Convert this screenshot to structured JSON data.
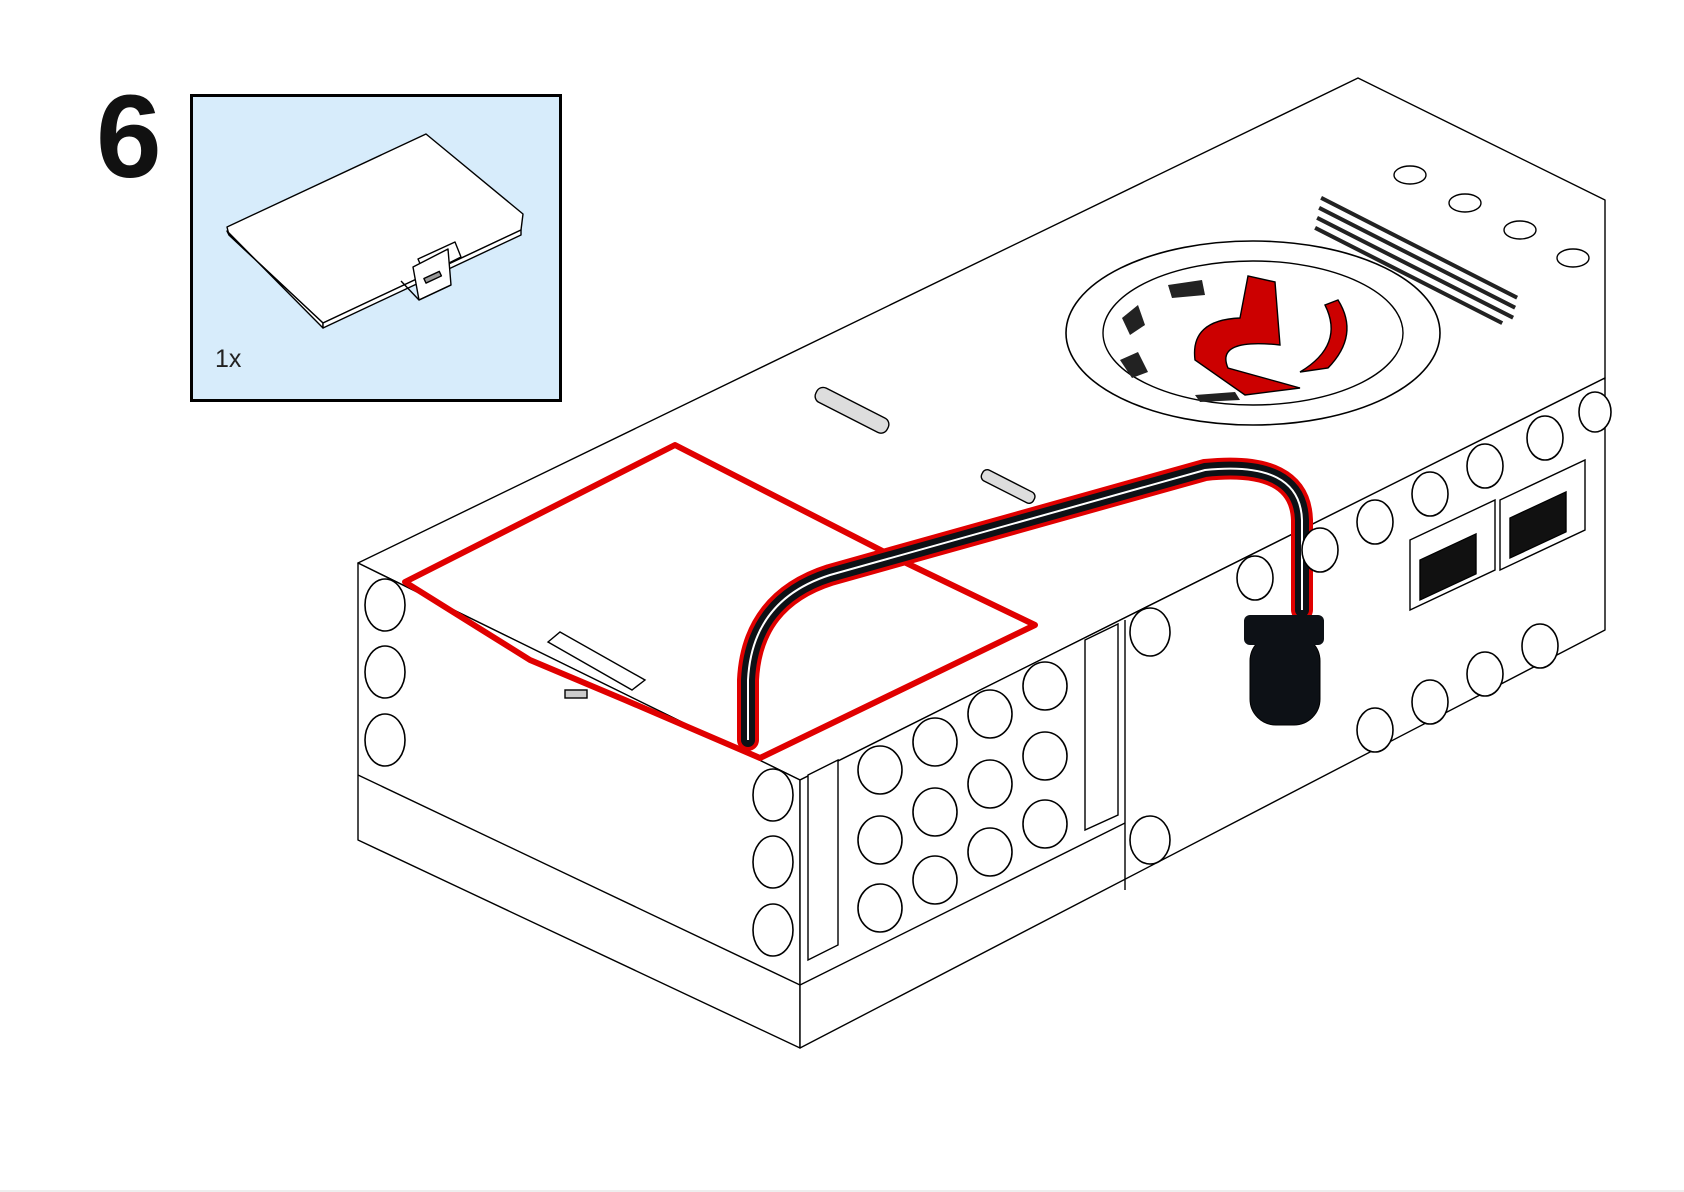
{
  "step": {
    "number": "6"
  },
  "parts_callout": {
    "quantity": "1x",
    "part_icon": "battery-cover-icon",
    "background_color": "#d7ecfb"
  },
  "model": {
    "icons": [
      "hub-brick-icon",
      "cable-icon",
      "connector-plug-icon",
      "port-icon",
      "button-icon",
      "speaker-grille-icon"
    ],
    "highlight_color": "#e00000",
    "cable_color": "#0d1116",
    "logo_color": "#cc0000"
  }
}
